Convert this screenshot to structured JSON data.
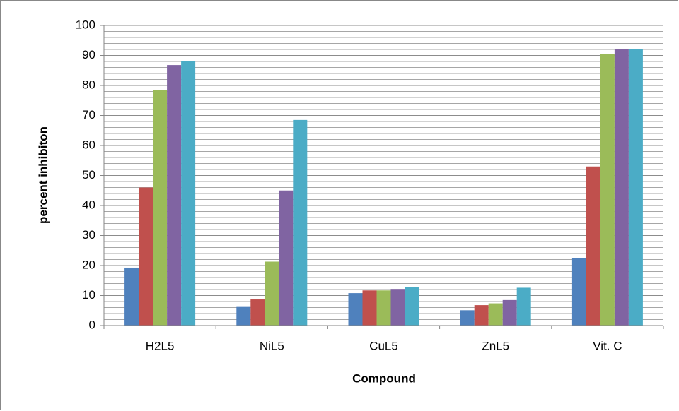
{
  "chart_data": {
    "type": "bar",
    "categories": [
      "H2L5",
      "NiL5",
      "CuL5",
      "ZnL5",
      "Vit. C"
    ],
    "series": [
      {
        "color": "#4f81bd",
        "values": [
          19.3,
          6.2,
          10.8,
          5.1,
          22.5
        ]
      },
      {
        "color": "#c0504d",
        "values": [
          46,
          8.7,
          11.7,
          6.8,
          53
        ]
      },
      {
        "color": "#9bbb59",
        "values": [
          78.5,
          21.3,
          11.7,
          7.4,
          90.5
        ]
      },
      {
        "color": "#8064a2",
        "values": [
          86.8,
          45,
          12.2,
          8.5,
          92
        ]
      },
      {
        "color": "#4bacc6",
        "values": [
          88,
          68.5,
          12.8,
          12.6,
          92
        ]
      }
    ],
    "x_label": "Compound",
    "y_label": "percent inhibiton",
    "ylim": [
      0,
      100
    ],
    "yticks": [
      0,
      10,
      20,
      30,
      40,
      50,
      60,
      70,
      80,
      90,
      100
    ],
    "grid": true,
    "minor_grid_step": 2
  }
}
